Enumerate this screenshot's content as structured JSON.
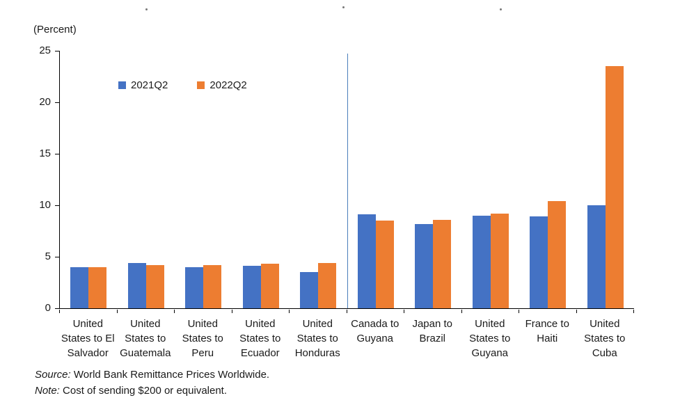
{
  "chart_data": {
    "type": "bar",
    "title": "",
    "ylabel": "(Percent)",
    "xlabel": "",
    "ylim": [
      0,
      25
    ],
    "y_ticks": [
      0,
      5,
      10,
      15,
      20,
      25
    ],
    "grid": false,
    "legend_position": "top-left-inside",
    "categories": [
      "United States to El Salvador",
      "United States to Guatemala",
      "United States to Peru",
      "United States to Ecuador",
      "United States to Honduras",
      "Canada to Guyana",
      "Japan to Brazil",
      "United States to Guyana",
      "France to Haiti",
      "United States to Cuba"
    ],
    "category_lines": [
      [
        "United",
        "States to El",
        "Salvador"
      ],
      [
        "United",
        "States to",
        "Guatemala"
      ],
      [
        "United",
        "States to",
        "Peru"
      ],
      [
        "United",
        "States to",
        "Ecuador"
      ],
      [
        "United",
        "States to",
        "Honduras"
      ],
      [
        "Canada to",
        "Guyana"
      ],
      [
        "Japan to",
        "Brazil"
      ],
      [
        "United",
        "States to",
        "Guyana"
      ],
      [
        "France to",
        "Haiti"
      ],
      [
        "United",
        "States to",
        "Cuba"
      ]
    ],
    "series": [
      {
        "name": "2021Q2",
        "color": "#4472C4",
        "values": [
          4.0,
          4.4,
          4.0,
          4.1,
          3.5,
          9.1,
          8.2,
          9.0,
          8.9,
          10.0
        ]
      },
      {
        "name": "2022Q2",
        "color": "#ED7D31",
        "values": [
          4.0,
          4.2,
          4.2,
          4.3,
          4.4,
          8.5,
          8.6,
          9.2,
          10.4,
          23.5
        ]
      }
    ],
    "separator_after_category_index": 4,
    "separator_color": "#4a7ebb"
  },
  "footer": {
    "source_label": "Source:",
    "source_text": " World Bank Remittance Prices Worldwide.",
    "note_label": "Note:",
    "note_text": " Cost of sending $200 or equivalent."
  }
}
